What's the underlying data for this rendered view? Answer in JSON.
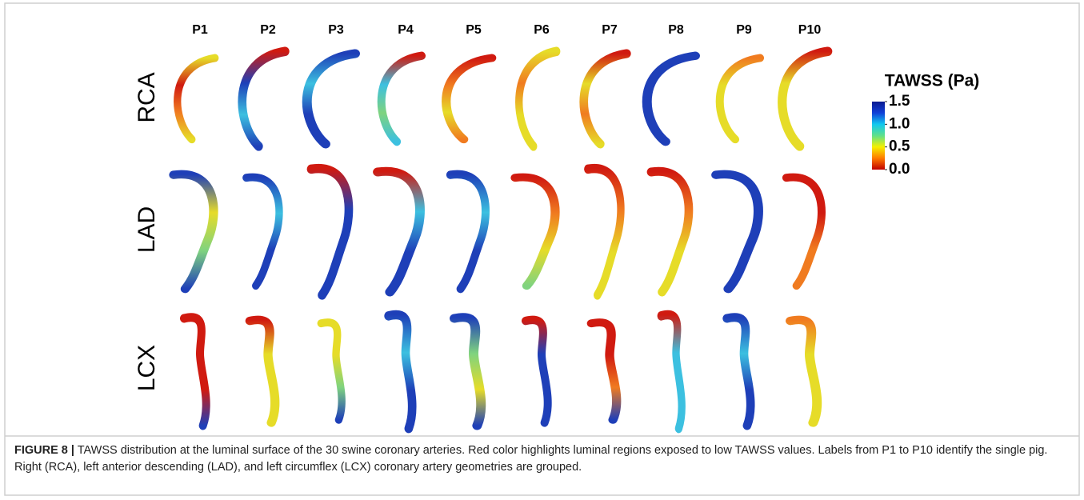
{
  "figure": {
    "columns": [
      "P1",
      "P2",
      "P3",
      "P4",
      "P5",
      "P6",
      "P7",
      "P8",
      "P9",
      "P10"
    ],
    "rows": [
      "RCA",
      "LAD",
      "LCX"
    ],
    "colorbar": {
      "title": "TAWSS (Pa)",
      "lim": [
        0,
        1.5
      ],
      "ticks": [
        {
          "value": 1.5,
          "label": "1.5"
        },
        {
          "value": 1,
          "label": "1.0"
        },
        0.5,
        {
          "value": 0,
          "label": "0.0"
        }
      ],
      "colors": [
        "#c00000",
        "#ff7a00",
        "#f5f000",
        "#5fe08a",
        "#10c8f0",
        "#1040d8",
        "#0a1a90"
      ]
    }
  },
  "caption": {
    "label": "FIGURE 8 |",
    "text": "TAWSS distribution at the luminal surface of the 30 swine coronary arteries. Red color highlights luminal regions exposed to low TAWSS values. Labels from P1 to P10 identify the single pig. Right (RCA), left anterior descending (LAD), and left circumflex (LCX) coronary artery geometries are grouped."
  }
}
